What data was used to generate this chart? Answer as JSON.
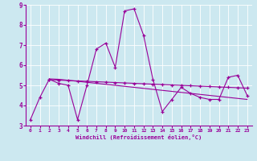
{
  "xlabel": "Windchill (Refroidissement éolien,°C)",
  "background_color": "#cce8f0",
  "line_color": "#990099",
  "grid_color": "#ffffff",
  "xlim": [
    -0.5,
    23.5
  ],
  "ylim": [
    3,
    9
  ],
  "yticks": [
    3,
    4,
    5,
    6,
    7,
    8,
    9
  ],
  "xticks": [
    0,
    1,
    2,
    3,
    4,
    5,
    6,
    7,
    8,
    9,
    10,
    11,
    12,
    13,
    14,
    15,
    16,
    17,
    18,
    19,
    20,
    21,
    22,
    23
  ],
  "series1_x": [
    0,
    1,
    2,
    3,
    4,
    5,
    6,
    7,
    8,
    9,
    10,
    11,
    12,
    13,
    14,
    15,
    16,
    17,
    18,
    19,
    20,
    21,
    22,
    23
  ],
  "series1_y": [
    3.3,
    4.4,
    5.3,
    5.1,
    5.0,
    3.3,
    5.0,
    6.8,
    7.1,
    5.9,
    8.7,
    8.8,
    7.5,
    5.3,
    3.7,
    4.3,
    4.9,
    4.6,
    4.4,
    4.3,
    4.3,
    5.4,
    5.5,
    4.5
  ],
  "series2_x": [
    2,
    3,
    4,
    5,
    6,
    7,
    8,
    9,
    10,
    11,
    12,
    13,
    14,
    15,
    16,
    17,
    18,
    19,
    20,
    21,
    22,
    23
  ],
  "series2_y": [
    5.28,
    5.26,
    5.24,
    5.22,
    5.2,
    5.18,
    5.16,
    5.14,
    5.12,
    5.1,
    5.08,
    5.06,
    5.04,
    5.02,
    5.0,
    4.98,
    4.96,
    4.94,
    4.92,
    4.9,
    4.88,
    4.86
  ],
  "series3_x": [
    2,
    3,
    4,
    5,
    6,
    7,
    8,
    9,
    10,
    11,
    12,
    13,
    14,
    15,
    16,
    17,
    18,
    19,
    20,
    21,
    22,
    23
  ],
  "series3_y": [
    5.32,
    5.3,
    5.25,
    5.2,
    5.15,
    5.1,
    5.05,
    5.0,
    4.95,
    4.9,
    4.85,
    4.8,
    4.75,
    4.7,
    4.65,
    4.6,
    4.55,
    4.5,
    4.45,
    4.4,
    4.35,
    4.3
  ]
}
